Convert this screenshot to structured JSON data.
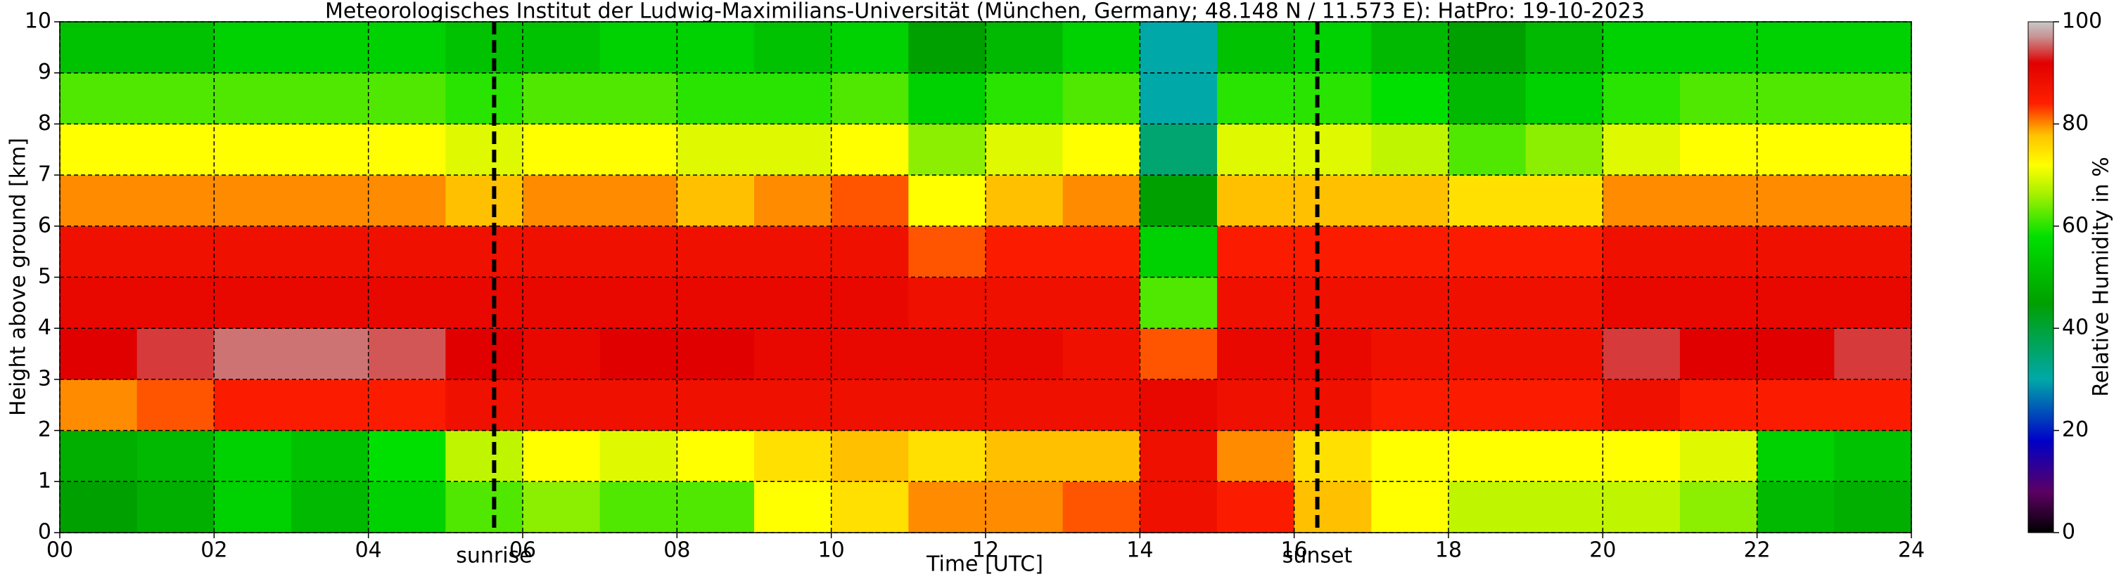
{
  "chart_data": {
    "type": "heatmap",
    "title": "Meteorologisches Institut der Ludwig-Maximilians-Universität (München, Germany; 48.148 N / 11.573 E):    HatPro: 19-10-2023",
    "xlabel": "Time [UTC]",
    "ylabel": "Height above ground [km]",
    "xlim": [
      0,
      24
    ],
    "ylim": [
      0,
      10
    ],
    "xticks": [
      {
        "value": 0,
        "label": "00"
      },
      {
        "value": 2,
        "label": "02"
      },
      {
        "value": 4,
        "label": "04"
      },
      {
        "value": 6,
        "label": "06"
      },
      {
        "value": 8,
        "label": "08"
      },
      10,
      12,
      14,
      16,
      18,
      20,
      22,
      24
    ],
    "yticks": [
      0,
      1,
      2,
      3,
      4,
      5,
      6,
      7,
      8,
      9,
      10
    ],
    "grid": true,
    "x": [
      0.5,
      1.5,
      2.5,
      3.5,
      4.5,
      5.5,
      6.5,
      7.5,
      8.5,
      9.5,
      10.5,
      11.5,
      12.5,
      13.5,
      14.5,
      15.5,
      16.5,
      17.5,
      18.5,
      19.5,
      20.5,
      21.5,
      22.5,
      23.5
    ],
    "y": [
      0.5,
      1.5,
      2.5,
      3.5,
      4.5,
      5.5,
      6.5,
      7.5,
      8.5,
      9.5
    ],
    "z": [
      [
        45,
        48,
        80,
        92,
        90,
        88,
        80,
        72,
        62,
        52
      ],
      [
        48,
        50,
        82,
        94,
        90,
        88,
        80,
        72,
        62,
        52
      ],
      [
        55,
        55,
        85,
        96,
        90,
        88,
        80,
        72,
        62,
        55
      ],
      [
        50,
        52,
        85,
        96,
        90,
        88,
        80,
        72,
        62,
        55
      ],
      [
        55,
        58,
        85,
        95,
        90,
        88,
        80,
        72,
        62,
        55
      ],
      [
        62,
        68,
        88,
        92,
        90,
        88,
        78,
        70,
        60,
        52
      ],
      [
        65,
        72,
        88,
        90,
        90,
        88,
        80,
        72,
        62,
        52
      ],
      [
        62,
        70,
        88,
        92,
        90,
        88,
        80,
        72,
        62,
        55
      ],
      [
        62,
        72,
        88,
        92,
        90,
        88,
        78,
        70,
        60,
        55
      ],
      [
        72,
        75,
        88,
        90,
        90,
        88,
        80,
        70,
        60,
        52
      ],
      [
        75,
        78,
        88,
        90,
        90,
        88,
        82,
        72,
        62,
        55
      ],
      [
        80,
        75,
        88,
        90,
        88,
        82,
        72,
        65,
        55,
        45
      ],
      [
        80,
        78,
        88,
        90,
        88,
        85,
        78,
        70,
        60,
        50
      ],
      [
        82,
        78,
        88,
        88,
        88,
        85,
        80,
        72,
        62,
        55
      ],
      [
        88,
        88,
        90,
        82,
        62,
        55,
        45,
        35,
        30,
        30
      ],
      [
        85,
        80,
        88,
        90,
        88,
        85,
        78,
        70,
        60,
        52
      ],
      [
        78,
        75,
        88,
        90,
        88,
        85,
        78,
        70,
        60,
        55
      ],
      [
        72,
        72,
        85,
        88,
        88,
        85,
        78,
        68,
        58,
        50
      ],
      [
        68,
        72,
        85,
        88,
        88,
        85,
        75,
        62,
        50,
        45
      ],
      [
        68,
        72,
        85,
        88,
        88,
        85,
        75,
        65,
        55,
        50
      ],
      [
        68,
        72,
        88,
        94,
        90,
        88,
        80,
        70,
        60,
        55
      ],
      [
        65,
        70,
        85,
        92,
        90,
        88,
        80,
        72,
        62,
        55
      ],
      [
        50,
        55,
        85,
        92,
        90,
        88,
        80,
        72,
        62,
        55
      ],
      [
        48,
        52,
        85,
        94,
        90,
        88,
        80,
        72,
        62,
        55
      ]
    ],
    "annotations": [
      {
        "text": "sunrise",
        "x": 5.63
      },
      {
        "text": "sunset",
        "x": 16.3
      }
    ],
    "colorbar": {
      "label": "Relative Humidity in %",
      "lim": [
        0,
        100
      ],
      "ticks": [
        0,
        20,
        40,
        60,
        80,
        100
      ],
      "colorscale": [
        {
          "value": 0,
          "color": "#000000"
        },
        {
          "value": 8,
          "color": "#5c0063"
        },
        {
          "value": 18,
          "color": "#0000c8"
        },
        {
          "value": 30,
          "color": "#00a8a8"
        },
        {
          "value": 45,
          "color": "#00a000"
        },
        {
          "value": 58,
          "color": "#00e000"
        },
        {
          "value": 66,
          "color": "#a0f000"
        },
        {
          "value": 72,
          "color": "#ffff00"
        },
        {
          "value": 78,
          "color": "#ffc000"
        },
        {
          "value": 84,
          "color": "#ff2000"
        },
        {
          "value": 92,
          "color": "#e00000"
        },
        {
          "value": 97,
          "color": "#c89090"
        },
        {
          "value": 100,
          "color": "#c8c8c8"
        }
      ]
    }
  }
}
